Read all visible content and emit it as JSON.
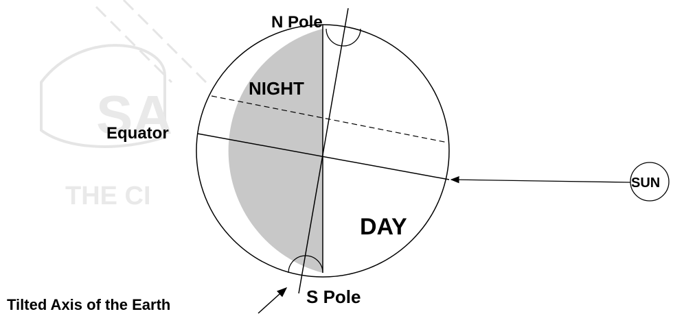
{
  "watermark": {
    "logo": "SA",
    "text": "THE CI"
  },
  "labels": {
    "north_pole": "N Pole",
    "night": "NIGHT",
    "equator": "Equator",
    "day": "DAY",
    "sun": "SUN",
    "south_pole": "S Pole",
    "axis": "Tilted Axis of the Earth"
  }
}
